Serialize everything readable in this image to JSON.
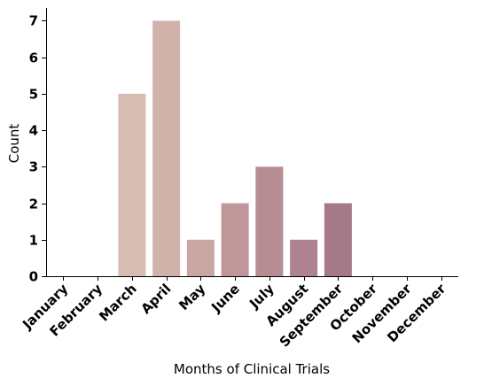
{
  "chart_data": {
    "type": "bar",
    "categories": [
      "January",
      "February",
      "March",
      "April",
      "May",
      "June",
      "July",
      "August",
      "September",
      "October",
      "November",
      "December"
    ],
    "values": [
      0,
      0,
      5,
      7,
      1,
      2,
      3,
      1,
      2,
      0,
      0,
      0
    ],
    "title": "",
    "xlabel": "Months of Clinical Trials",
    "ylabel": "Count",
    "ylim": [
      0,
      7.35
    ],
    "yticks": [
      0,
      1,
      2,
      3,
      4,
      5,
      6,
      7
    ],
    "grid": false,
    "colors": [
      "#e0cdc0",
      "#dbc4b8",
      "#d6bcb3",
      "#d1b2ab",
      "#c9a5a3",
      "#bf9699",
      "#b78c93",
      "#ae8290",
      "#a57988",
      "#9a6d80",
      "#906578",
      "#866070"
    ]
  }
}
